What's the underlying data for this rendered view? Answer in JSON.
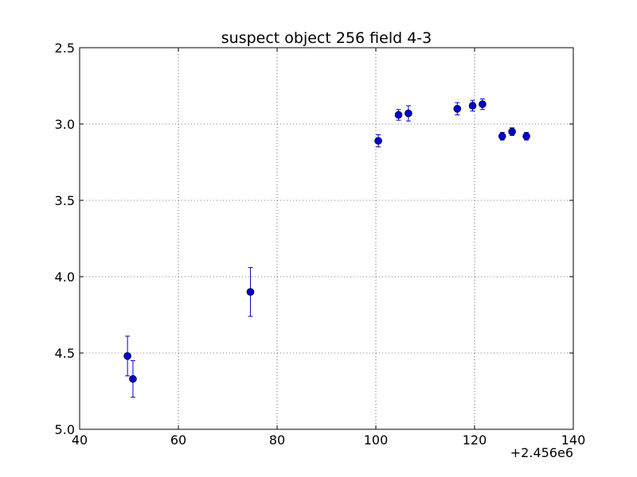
{
  "chart_data": {
    "type": "scatter",
    "title": "suspect object 256 field 4-3",
    "xlabel": "",
    "ylabel": "",
    "x_offset_label": "+2.456e6",
    "xlim": [
      40,
      140
    ],
    "ylim": [
      5.0,
      2.5
    ],
    "y_inverted": true,
    "grid": true,
    "x_ticks": [
      40,
      60,
      80,
      100,
      120,
      140
    ],
    "x_tick_labels": [
      "40",
      "60",
      "80",
      "100",
      "120",
      "140"
    ],
    "y_ticks": [
      2.5,
      3.0,
      3.5,
      4.0,
      4.5,
      5.0
    ],
    "y_tick_labels": [
      "2.5",
      "3.0",
      "3.5",
      "4.0",
      "4.5",
      "5.0"
    ],
    "marker_color": "#0000cc",
    "points": [
      {
        "x": 49.7,
        "y": 4.52,
        "err": 0.13
      },
      {
        "x": 50.8,
        "y": 4.67,
        "err": 0.12
      },
      {
        "x": 74.6,
        "y": 4.1,
        "err": 0.16
      },
      {
        "x": 100.5,
        "y": 3.11,
        "err": 0.04
      },
      {
        "x": 104.6,
        "y": 2.94,
        "err": 0.035
      },
      {
        "x": 106.6,
        "y": 2.93,
        "err": 0.05
      },
      {
        "x": 116.5,
        "y": 2.9,
        "err": 0.04
      },
      {
        "x": 119.6,
        "y": 2.88,
        "err": 0.035
      },
      {
        "x": 121.6,
        "y": 2.87,
        "err": 0.035
      },
      {
        "x": 125.6,
        "y": 3.08,
        "err": 0.025
      },
      {
        "x": 127.6,
        "y": 3.05,
        "err": 0.025
      },
      {
        "x": 130.5,
        "y": 3.08,
        "err": 0.025
      }
    ]
  }
}
